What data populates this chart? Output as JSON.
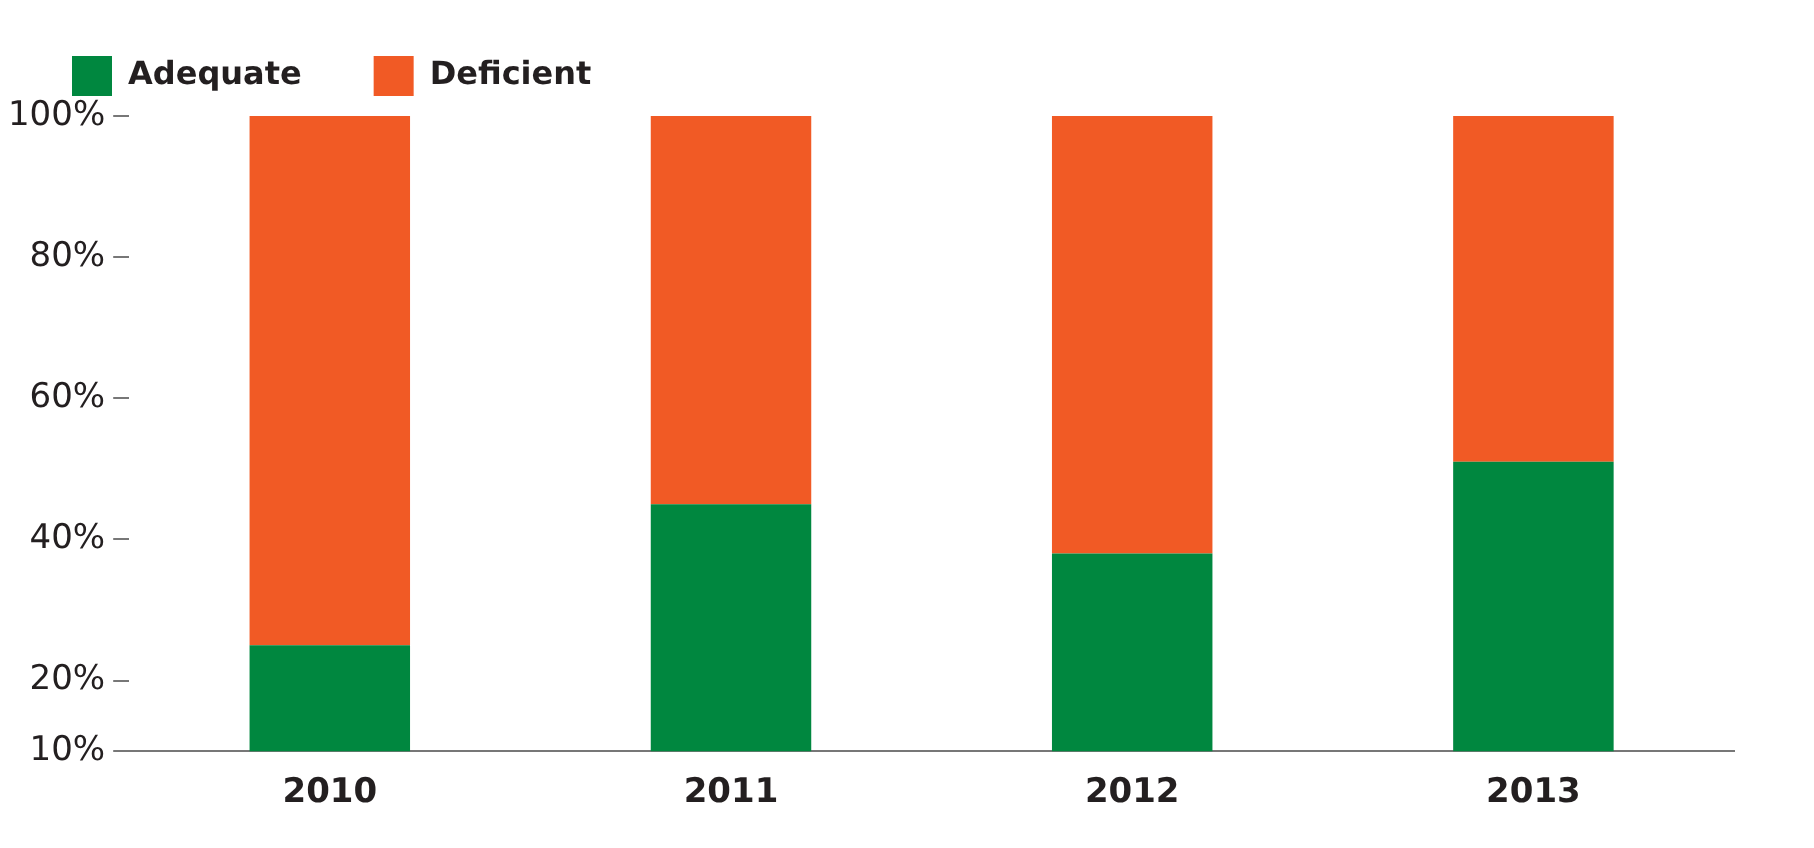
{
  "chart_data": {
    "type": "bar",
    "stacked": true,
    "categories": [
      "2010",
      "2011",
      "2012",
      "2013"
    ],
    "series": [
      {
        "name": "Adequate",
        "color": "#00873f",
        "values": [
          25,
          45,
          38,
          51
        ]
      },
      {
        "name": "Deficient",
        "color": "#f15a25",
        "values": [
          75,
          55,
          62,
          49
        ]
      }
    ],
    "ylim": [
      10,
      100
    ],
    "yticks": [
      {
        "value": 10,
        "label": "10%"
      },
      {
        "value": 20,
        "label": "20%"
      },
      {
        "value": 40,
        "label": "40%"
      },
      {
        "value": 60,
        "label": "60%"
      },
      {
        "value": 80,
        "label": "80%"
      },
      {
        "value": 100,
        "label": "100%"
      }
    ],
    "grid": false,
    "legend": "top left"
  }
}
